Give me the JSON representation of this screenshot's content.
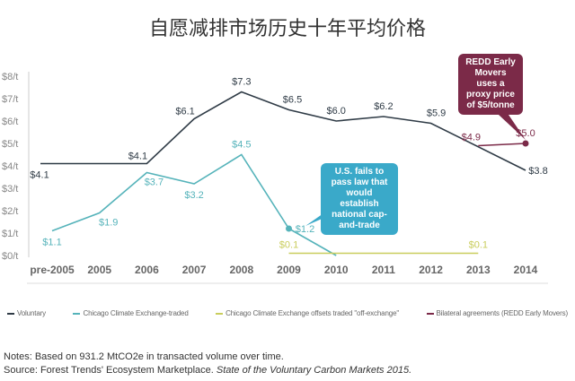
{
  "title": "自愿减排市场历史十年平均价格",
  "chart_data": {
    "type": "line",
    "title": "自愿减排市场历史十年平均价格",
    "categories": [
      "pre-2005",
      "2005",
      "2006",
      "2007",
      "2008",
      "2009",
      "2010",
      "2011",
      "2012",
      "2013",
      "2014"
    ],
    "y_ticks": [
      "$0/t",
      "$1/t",
      "$2/t",
      "$3/t",
      "$4/t",
      "$5/t",
      "$6/t",
      "$7/t",
      "$8/t"
    ],
    "ylim": [
      0,
      8
    ],
    "grid": false,
    "legend_placement": "bottom",
    "series": [
      {
        "name": "Voluntary",
        "color": "#2f3b46",
        "values": [
          4.1,
          4.1,
          4.1,
          6.1,
          7.3,
          6.5,
          6.0,
          6.2,
          5.9,
          null,
          3.8
        ],
        "labels": [
          "$4.1",
          null,
          "$4.1",
          "$6.1",
          "$7.3",
          "$6.5",
          "$6.0",
          "$6.2",
          "$5.9",
          null,
          "$3.8"
        ]
      },
      {
        "name": "Chicago Climate Exchange-traded",
        "color": "#55b3ba",
        "values": [
          1.1,
          1.9,
          3.7,
          3.2,
          4.5,
          1.2,
          0,
          null,
          null,
          null,
          null
        ],
        "labels": [
          "$1.1",
          "$1.9",
          "$3.7",
          "$3.2",
          "$4.5",
          "$1.2",
          null,
          null,
          null,
          null,
          null
        ]
      },
      {
        "name": "Chicago Climate Exchange offsets traded \"off-exchange\"",
        "color": "#c9cd5c",
        "values": [
          null,
          null,
          null,
          null,
          null,
          0.1,
          0.1,
          0.1,
          0.1,
          0.1,
          null
        ],
        "labels": [
          null,
          null,
          null,
          null,
          null,
          "$0.1",
          null,
          null,
          null,
          "$0.1",
          null
        ]
      },
      {
        "name": "Bilateral agreements (REDD Early Movers)",
        "color": "#7b2a48",
        "values": [
          null,
          null,
          null,
          null,
          null,
          null,
          null,
          null,
          null,
          4.9,
          5.0
        ],
        "labels": [
          null,
          null,
          null,
          null,
          null,
          null,
          null,
          null,
          null,
          "$4.9",
          "$5.0"
        ]
      }
    ],
    "annotations": [
      {
        "text": "U.S. fails to pass law that would establish national cap-and-trade",
        "color": "#3aa9c9"
      },
      {
        "text": "REDD Early Movers uses a proxy price of $5/tonne",
        "color": "#7b2a48"
      }
    ]
  },
  "notes": "Notes: Based on 931.2 MtCO2e in transacted volume over time.",
  "source_prefix": "Source: Forest Trends' Ecosystem Marketplace. ",
  "source_italic": "State of the Voluntary Carbon Markets 2015."
}
